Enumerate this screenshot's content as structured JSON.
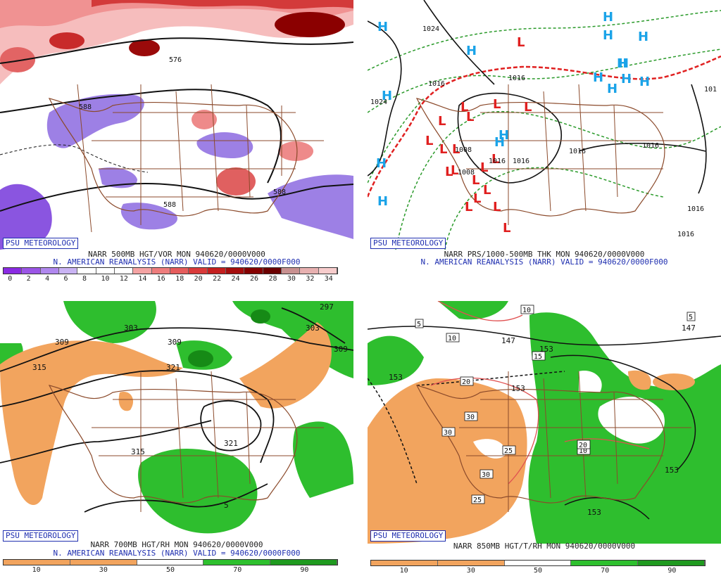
{
  "panels": [
    {
      "id": "p1",
      "logo": "PSU METEOROLOGY",
      "caption_line1": "NARR 500MB HGT/VOR MON 940620/0000V000",
      "caption_line2": "N. AMERICAN REANALYSIS (NARR) VALID = 940620/0000F000",
      "scale_ticks": [
        "0",
        "2",
        "4",
        "6",
        "8",
        "10",
        "12",
        "14",
        "16",
        "18",
        "20",
        "22",
        "24",
        "26",
        "28",
        "30",
        "32",
        "34"
      ],
      "scale_colors": [
        "#8a2be2",
        "#9b55e6",
        "#b087ee",
        "#c9b3f3",
        "#ffffff",
        "#ffffff",
        "#ffffff",
        "#f4a3a3",
        "#ee7d7d",
        "#e55c5c",
        "#d93a3a",
        "#c41f1f",
        "#a50d0d",
        "#850000",
        "#6b0000",
        "#c89090",
        "#e7b0b0",
        "#f7cccc"
      ],
      "contour_labels": [
        "576",
        "588",
        "588",
        "588"
      ]
    },
    {
      "id": "p2",
      "logo": "PSU METEOROLOGY",
      "caption_line1": "NARR PRS/1000-500MB THK MON 940620/0000V000",
      "caption_line2": "N. AMERICAN REANALYSIS (NARR) VALID = 940620/0000F000",
      "highs": [
        "H",
        "H",
        "H",
        "H",
        "H",
        "H",
        "H",
        "H",
        "H",
        "H",
        "H",
        "H",
        "H",
        "H",
        "H",
        "H"
      ],
      "lows": [
        "L",
        "L",
        "L",
        "L",
        "L",
        "L",
        "L",
        "L",
        "L",
        "L",
        "L",
        "L",
        "L",
        "L",
        "L",
        "L",
        "L",
        "L",
        "L"
      ],
      "isobar_labels": [
        "1024",
        "1024",
        "1016",
        "1016",
        "1016",
        "1016",
        "1016",
        "1016",
        "1016",
        "1008",
        "1008",
        "1016",
        "101"
      ]
    },
    {
      "id": "p3",
      "logo": "PSU METEOROLOGY",
      "caption_line1": "NARR 700MB HGT/RH MON 940620/0000V000",
      "caption_line2": "N. AMERICAN REANALYSIS (NARR) VALID = 940620/0000F000",
      "scale_ticks": [
        "10",
        "30",
        "50",
        "70",
        "90"
      ],
      "scale_colors": [
        "#f2a45e",
        "#f2a45e",
        "#ffffff",
        "#2ec02e",
        "#1f9a1f"
      ],
      "contour_labels": [
        "297",
        "303",
        "303",
        "309",
        "309",
        "309",
        "315",
        "321",
        "321",
        "315",
        "5"
      ]
    },
    {
      "id": "p4",
      "logo": "PSU METEOROLOGY",
      "caption_line1": "NARR 850MB HGT/T/RH MON 940620/0000V000",
      "scale_ticks": [
        "10",
        "30",
        "50",
        "70",
        "90"
      ],
      "scale_colors": [
        "#f2a45e",
        "#f2a45e",
        "#ffffff",
        "#2ec02e",
        "#1f9a1f"
      ],
      "contour_labels": [
        "147",
        "147",
        "153",
        "153",
        "153",
        "153",
        "153"
      ],
      "temp_labels": [
        "10",
        "10",
        "10",
        "15",
        "20",
        "20",
        "25",
        "25",
        "30",
        "30",
        "30",
        "5",
        "5"
      ]
    }
  ]
}
